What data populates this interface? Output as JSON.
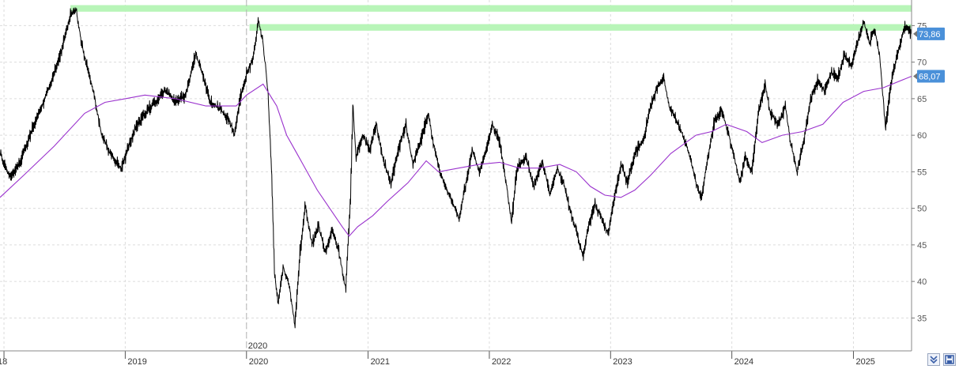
{
  "chart_data": {
    "type": "line",
    "title": "",
    "xlabel": "",
    "ylabel": "",
    "x_range": [
      "2017-12-20",
      "2025-06-25"
    ],
    "ylim": [
      30.5,
      78.5
    ],
    "y_ticks": [
      35,
      40,
      45,
      50,
      55,
      60,
      65,
      70,
      75
    ],
    "y_tick_labels": [
      "35",
      "40",
      "45",
      "50",
      "55",
      "60",
      "65",
      "70",
      "75"
    ],
    "x_ticks": [
      {
        "label": "18",
        "date": "2018-01-01"
      },
      {
        "label": "2019",
        "date": "2019-01-01"
      },
      {
        "label": "2020",
        "date": "2020-01-01"
      },
      {
        "label": "2021",
        "date": "2021-01-01"
      },
      {
        "label": "2022",
        "date": "2022-01-01"
      },
      {
        "label": "2023",
        "date": "2023-01-01"
      },
      {
        "label": "2024",
        "date": "2024-01-01"
      },
      {
        "label": "2025",
        "date": "2025-01-01"
      }
    ],
    "marker_line": {
      "label": "2020",
      "date": "2020-01-01"
    },
    "grid": true,
    "legend": "none",
    "resistance_bands": [
      {
        "from_date": "2018-07-20",
        "to_date": "2025-06-25",
        "low": 76.9,
        "high": 77.8,
        "color": "#b8f5b8"
      },
      {
        "from_date": "2020-01-10",
        "to_date": "2025-06-25",
        "low": 74.3,
        "high": 75.2,
        "color": "#b8f5b8"
      }
    ],
    "series": [
      {
        "role": "price",
        "color": "#000000",
        "points": [
          [
            "2017-12-20",
            57.5
          ],
          [
            "2018-01-20",
            54.2
          ],
          [
            "2018-02-20",
            56.5
          ],
          [
            "2018-03-20",
            60.0
          ],
          [
            "2018-04-20",
            63.5
          ],
          [
            "2018-05-20",
            67.0
          ],
          [
            "2018-06-20",
            71.2
          ],
          [
            "2018-07-20",
            76.5
          ],
          [
            "2018-08-05",
            77.2
          ],
          [
            "2018-08-20",
            73.0
          ],
          [
            "2018-09-10",
            69.0
          ],
          [
            "2018-10-01",
            65.0
          ],
          [
            "2018-10-20",
            60.5
          ],
          [
            "2018-11-10",
            58.0
          ],
          [
            "2018-12-01",
            56.5
          ],
          [
            "2018-12-20",
            55.5
          ],
          [
            "2019-01-10",
            58.5
          ],
          [
            "2019-02-01",
            61.0
          ],
          [
            "2019-03-01",
            63.0
          ],
          [
            "2019-04-01",
            64.5
          ],
          [
            "2019-05-01",
            66.2
          ],
          [
            "2019-06-01",
            64.5
          ],
          [
            "2019-07-01",
            65.5
          ],
          [
            "2019-08-01",
            71.2
          ],
          [
            "2019-08-20",
            68.5
          ],
          [
            "2019-09-15",
            64.5
          ],
          [
            "2019-10-15",
            63.5
          ],
          [
            "2019-11-10",
            62.0
          ],
          [
            "2019-11-25",
            60.0
          ],
          [
            "2019-12-10",
            64.5
          ],
          [
            "2020-01-01",
            68.5
          ],
          [
            "2020-01-20",
            70.5
          ],
          [
            "2020-02-05",
            75.5
          ],
          [
            "2020-02-18",
            73.0
          ],
          [
            "2020-03-05",
            66.0
          ],
          [
            "2020-03-16",
            55.0
          ],
          [
            "2020-03-25",
            41.0
          ],
          [
            "2020-04-05",
            37.0
          ],
          [
            "2020-04-20",
            42.0
          ],
          [
            "2020-05-10",
            39.0
          ],
          [
            "2020-05-25",
            34.0
          ],
          [
            "2020-06-10",
            44.0
          ],
          [
            "2020-06-25",
            50.5
          ],
          [
            "2020-07-15",
            45.0
          ],
          [
            "2020-08-05",
            47.5
          ],
          [
            "2020-08-25",
            44.0
          ],
          [
            "2020-09-15",
            47.0
          ],
          [
            "2020-10-05",
            44.0
          ],
          [
            "2020-10-25",
            39.0
          ],
          [
            "2020-11-08",
            51.0
          ],
          [
            "2020-11-16",
            64.0
          ],
          [
            "2020-11-25",
            57.0
          ],
          [
            "2020-12-15",
            60.0
          ],
          [
            "2021-01-05",
            58.0
          ],
          [
            "2021-01-25",
            61.5
          ],
          [
            "2021-02-15",
            56.5
          ],
          [
            "2021-03-10",
            53.5
          ],
          [
            "2021-04-01",
            58.0
          ],
          [
            "2021-04-25",
            61.5
          ],
          [
            "2021-05-15",
            56.0
          ],
          [
            "2021-06-10",
            59.5
          ],
          [
            "2021-07-01",
            63.0
          ],
          [
            "2021-07-15",
            59.0
          ],
          [
            "2021-08-05",
            55.0
          ],
          [
            "2021-08-25",
            52.5
          ],
          [
            "2021-09-15",
            50.5
          ],
          [
            "2021-10-01",
            48.5
          ],
          [
            "2021-10-20",
            53.0
          ],
          [
            "2021-11-10",
            58.0
          ],
          [
            "2021-12-01",
            55.0
          ],
          [
            "2021-12-20",
            57.5
          ],
          [
            "2022-01-10",
            61.5
          ],
          [
            "2022-02-01",
            59.0
          ],
          [
            "2022-02-20",
            53.5
          ],
          [
            "2022-03-08",
            48.0
          ],
          [
            "2022-03-25",
            55.5
          ],
          [
            "2022-04-20",
            57.0
          ],
          [
            "2022-05-15",
            53.0
          ],
          [
            "2022-06-10",
            56.5
          ],
          [
            "2022-07-01",
            52.0
          ],
          [
            "2022-07-25",
            55.5
          ],
          [
            "2022-08-15",
            53.0
          ],
          [
            "2022-09-05",
            49.0
          ],
          [
            "2022-09-25",
            46.0
          ],
          [
            "2022-10-10",
            43.5
          ],
          [
            "2022-10-25",
            47.5
          ],
          [
            "2022-11-15",
            50.5
          ],
          [
            "2022-12-05",
            48.5
          ],
          [
            "2022-12-25",
            46.5
          ],
          [
            "2023-01-10",
            51.0
          ],
          [
            "2023-02-01",
            56.0
          ],
          [
            "2023-02-20",
            53.5
          ],
          [
            "2023-03-15",
            57.5
          ],
          [
            "2023-04-10",
            59.5
          ],
          [
            "2023-05-01",
            64.0
          ],
          [
            "2023-05-25",
            67.0
          ],
          [
            "2023-06-10",
            68.0
          ],
          [
            "2023-06-25",
            64.0
          ],
          [
            "2023-07-15",
            62.5
          ],
          [
            "2023-08-05",
            60.0
          ],
          [
            "2023-08-25",
            57.5
          ],
          [
            "2023-09-15",
            53.5
          ],
          [
            "2023-10-01",
            51.5
          ],
          [
            "2023-10-20",
            57.0
          ],
          [
            "2023-11-10",
            62.0
          ],
          [
            "2023-12-01",
            63.5
          ],
          [
            "2023-12-20",
            60.5
          ],
          [
            "2024-01-10",
            56.5
          ],
          [
            "2024-01-25",
            53.5
          ],
          [
            "2024-02-10",
            57.0
          ],
          [
            "2024-03-01",
            55.0
          ],
          [
            "2024-03-20",
            63.0
          ],
          [
            "2024-04-10",
            67.0
          ],
          [
            "2024-04-25",
            63.0
          ],
          [
            "2024-05-20",
            61.5
          ],
          [
            "2024-06-10",
            64.0
          ],
          [
            "2024-06-25",
            59.0
          ],
          [
            "2024-07-15",
            55.0
          ],
          [
            "2024-08-05",
            59.5
          ],
          [
            "2024-08-25",
            65.0
          ],
          [
            "2024-09-15",
            67.5
          ],
          [
            "2024-10-05",
            66.0
          ],
          [
            "2024-10-25",
            68.5
          ],
          [
            "2024-11-15",
            68.0
          ],
          [
            "2024-12-05",
            71.0
          ],
          [
            "2024-12-25",
            69.5
          ],
          [
            "2025-01-15",
            73.0
          ],
          [
            "2025-02-01",
            75.5
          ],
          [
            "2025-02-18",
            72.5
          ],
          [
            "2025-03-05",
            74.5
          ],
          [
            "2025-03-20",
            71.0
          ],
          [
            "2025-04-07",
            61.0
          ],
          [
            "2025-04-25",
            67.5
          ],
          [
            "2025-05-15",
            71.5
          ],
          [
            "2025-06-05",
            75.0
          ],
          [
            "2025-06-25",
            73.86
          ]
        ]
      },
      {
        "role": "moving-average",
        "color": "#9a32cd",
        "points": [
          [
            "2017-12-20",
            51.5
          ],
          [
            "2018-03-01",
            54.5
          ],
          [
            "2018-06-01",
            58.5
          ],
          [
            "2018-09-01",
            63.0
          ],
          [
            "2018-11-01",
            64.5
          ],
          [
            "2019-01-01",
            65.0
          ],
          [
            "2019-03-01",
            65.5
          ],
          [
            "2019-06-01",
            65.0
          ],
          [
            "2019-09-01",
            64.0
          ],
          [
            "2019-12-01",
            64.0
          ],
          [
            "2020-01-01",
            65.5
          ],
          [
            "2020-02-20",
            67.0
          ],
          [
            "2020-04-01",
            64.0
          ],
          [
            "2020-05-01",
            60.0
          ],
          [
            "2020-06-01",
            57.5
          ],
          [
            "2020-08-01",
            52.5
          ],
          [
            "2020-10-15",
            47.5
          ],
          [
            "2020-11-05",
            46.2
          ],
          [
            "2020-12-01",
            47.5
          ],
          [
            "2021-01-15",
            49.0
          ],
          [
            "2021-03-01",
            51.0
          ],
          [
            "2021-05-01",
            53.5
          ],
          [
            "2021-06-25",
            56.5
          ],
          [
            "2021-08-01",
            55.0
          ],
          [
            "2021-10-01",
            55.5
          ],
          [
            "2021-12-01",
            56.0
          ],
          [
            "2022-02-01",
            56.3
          ],
          [
            "2022-04-01",
            55.5
          ],
          [
            "2022-06-01",
            55.5
          ],
          [
            "2022-08-01",
            56.0
          ],
          [
            "2022-09-20",
            55.0
          ],
          [
            "2022-11-01",
            53.0
          ],
          [
            "2022-12-15",
            51.8
          ],
          [
            "2023-02-01",
            51.5
          ],
          [
            "2023-03-15",
            52.5
          ],
          [
            "2023-05-01",
            54.5
          ],
          [
            "2023-07-01",
            57.5
          ],
          [
            "2023-09-15",
            60.0
          ],
          [
            "2023-11-01",
            60.5
          ],
          [
            "2023-12-15",
            61.5
          ],
          [
            "2024-02-15",
            60.5
          ],
          [
            "2024-04-01",
            59.0
          ],
          [
            "2024-06-01",
            60.0
          ],
          [
            "2024-08-01",
            60.5
          ],
          [
            "2024-10-01",
            61.5
          ],
          [
            "2024-12-01",
            64.5
          ],
          [
            "2025-02-01",
            66.0
          ],
          [
            "2025-04-01",
            66.5
          ],
          [
            "2025-06-25",
            68.07
          ]
        ]
      }
    ],
    "price_tags": [
      {
        "value": 73.86,
        "label": "73,86",
        "color": "#4a90d9"
      },
      {
        "value": 68.07,
        "label": "68,07",
        "color": "#4a90d9"
      }
    ]
  },
  "icons": {
    "left_button": "double-chevron-down-icon",
    "right_button": "save-disk-icon"
  }
}
